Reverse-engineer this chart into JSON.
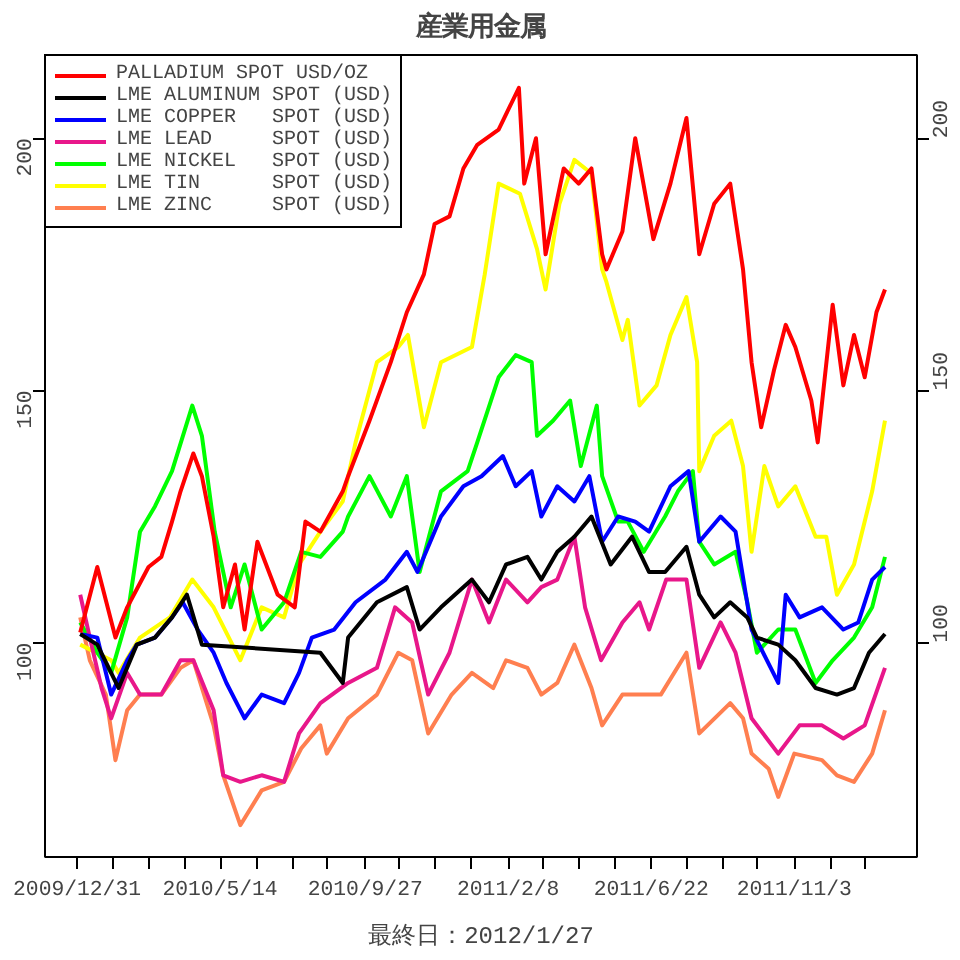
{
  "chart_data": {
    "type": "line",
    "title": "産業用金属",
    "annotations": [
      "最終日：2012/1/27"
    ],
    "xlim": [
      "2009-12-01",
      "2012-02-26"
    ],
    "xticks": [
      {
        "value": "2009-12-31",
        "label": "2009/12/31"
      },
      {
        "value": "2010-02-03",
        "label": null
      },
      {
        "value": "2010-03-08",
        "label": null
      },
      {
        "value": "2010-04-11",
        "label": null
      },
      {
        "value": "2010-05-14",
        "label": "2010/5/14"
      },
      {
        "value": "2010-06-17",
        "label": null
      },
      {
        "value": "2010-07-21",
        "label": null
      },
      {
        "value": "2010-08-23",
        "label": null
      },
      {
        "value": "2010-09-27",
        "label": "2010/9/27"
      },
      {
        "value": "2010-10-29",
        "label": null
      },
      {
        "value": "2010-12-02",
        "label": null
      },
      {
        "value": "2011-01-05",
        "label": null
      },
      {
        "value": "2011-02-08",
        "label": "2011/2/8"
      },
      {
        "value": "2011-03-13",
        "label": null
      },
      {
        "value": "2011-04-15",
        "label": null
      },
      {
        "value": "2011-05-19",
        "label": null
      },
      {
        "value": "2011-06-22",
        "label": "2011/6/22"
      },
      {
        "value": "2011-07-25",
        "label": null
      },
      {
        "value": "2011-08-28",
        "label": null
      },
      {
        "value": "2011-09-30",
        "label": null
      },
      {
        "value": "2011-11-03",
        "label": "2011/11/3"
      },
      {
        "value": "2011-12-07",
        "label": null
      },
      {
        "value": "2012-01-09",
        "label": null
      }
    ],
    "ylim": [
      57.5,
      216.5
    ],
    "yticks": [
      100,
      150,
      200
    ],
    "y2lim": [
      57.5,
      216.5
    ],
    "y2ticks": [
      100,
      150,
      200
    ],
    "legend": "top left",
    "series": [
      {
        "name": "PALLADIUM SPOT USD/OZ",
        "color": "#ff0000",
        "x": [
          "2010-01-03",
          "2010-01-19",
          "2010-02-05",
          "2010-02-16",
          "2010-02-21",
          "2010-03-08",
          "2010-03-20",
          "2010-03-30",
          "2010-04-07",
          "2010-04-19",
          "2010-04-27",
          "2010-05-08",
          "2010-05-17",
          "2010-05-28",
          "2010-06-06",
          "2010-06-18",
          "2010-07-07",
          "2010-07-23",
          "2010-08-02",
          "2010-08-16",
          "2010-09-06",
          "2010-09-11",
          "2010-10-01",
          "2010-10-21",
          "2010-11-05",
          "2010-11-21",
          "2010-12-01",
          "2010-12-15",
          "2010-12-28",
          "2011-01-10",
          "2011-01-30",
          "2011-02-18",
          "2011-02-23",
          "2011-03-06",
          "2011-03-15",
          "2011-04-01",
          "2011-04-15",
          "2011-04-27",
          "2011-05-07",
          "2011-05-11",
          "2011-05-26",
          "2011-06-07",
          "2011-06-24",
          "2011-07-10",
          "2011-07-25",
          "2011-08-06",
          "2011-08-20",
          "2011-09-04",
          "2011-09-16",
          "2011-09-24",
          "2011-10-03",
          "2011-10-15",
          "2011-10-26",
          "2011-11-04",
          "2011-11-19",
          "2011-11-25",
          "2011-12-09",
          "2011-12-19",
          "2011-12-29",
          "2012-01-08",
          "2012-01-19",
          "2012-01-27"
        ],
        "values": [
          102,
          115,
          101,
          107,
          109,
          115,
          117,
          124,
          130,
          137.5,
          133,
          121,
          107,
          115.5,
          102.6,
          120,
          109.5,
          107,
          124,
          122,
          130,
          133,
          144,
          155.6,
          165.5,
          173,
          183,
          184.5,
          194,
          198.7,
          201.7,
          210,
          191,
          200,
          177,
          194,
          191,
          194,
          177,
          174,
          181.5,
          200,
          180,
          191,
          204,
          177,
          187,
          191,
          174,
          155.6,
          142.7,
          154,
          163,
          158.6,
          148,
          139.7,
          167,
          151,
          161,
          152.6,
          165.5,
          170
        ]
      },
      {
        "name": "LME ALUMINUM SPOT (USD)",
        "color": "#000000",
        "x": [
          "2010-01-03",
          "2010-01-19",
          "2010-02-08",
          "2010-02-25",
          "2010-03-14",
          "2010-03-30",
          "2010-04-13",
          "2010-04-27",
          "2010-08-16",
          "2010-09-06",
          "2010-09-11",
          "2010-10-08",
          "2010-11-05",
          "2010-11-17",
          "2010-12-07",
          "2011-01-05",
          "2011-01-21",
          "2011-02-06",
          "2011-02-26",
          "2011-03-11",
          "2011-03-26",
          "2011-04-11",
          "2011-04-27",
          "2011-05-15",
          "2011-06-04",
          "2011-06-20",
          "2011-07-05",
          "2011-07-25",
          "2011-08-06",
          "2011-08-20",
          "2011-09-04",
          "2011-09-20",
          "2011-09-29",
          "2011-10-19",
          "2011-11-04",
          "2011-11-23",
          "2011-12-13",
          "2011-12-29",
          "2012-01-12",
          "2012-01-27"
        ],
        "values": [
          101.7,
          99.6,
          91,
          99.6,
          101,
          105,
          109.5,
          99.6,
          98,
          92,
          101,
          108,
          111,
          102.6,
          107,
          112.5,
          108,
          115.5,
          117,
          112.5,
          118,
          121,
          125,
          115.5,
          121,
          114,
          114,
          119,
          109.5,
          105,
          108,
          105,
          101,
          99.6,
          96.5,
          91,
          89.7,
          91,
          98,
          101.7
        ]
      },
      {
        "name": "LME COPPER   SPOT (USD)",
        "color": "#0000ff",
        "x": [
          "2010-01-03",
          "2010-01-19",
          "2010-02-01",
          "2010-02-16",
          "2010-02-25",
          "2010-03-14",
          "2010-03-30",
          "2010-04-09",
          "2010-04-23",
          "2010-05-08",
          "2010-05-20",
          "2010-06-06",
          "2010-06-22",
          "2010-07-13",
          "2010-07-27",
          "2010-08-08",
          "2010-08-29",
          "2010-09-18",
          "2010-10-16",
          "2010-11-05",
          "2010-11-15",
          "2010-12-07",
          "2010-12-28",
          "2011-01-14",
          "2011-02-03",
          "2011-02-15",
          "2011-03-02",
          "2011-03-11",
          "2011-03-26",
          "2011-04-11",
          "2011-04-25",
          "2011-05-07",
          "2011-05-22",
          "2011-06-07",
          "2011-06-20",
          "2011-07-10",
          "2011-07-27",
          "2011-08-06",
          "2011-08-26",
          "2011-09-09",
          "2011-09-24",
          "2011-10-19",
          "2011-10-26",
          "2011-11-08",
          "2011-11-29",
          "2011-12-19",
          "2012-01-02",
          "2012-01-15",
          "2012-01-27"
        ],
        "values": [
          101.7,
          101,
          89.7,
          96.5,
          99.6,
          101,
          105,
          108,
          102.6,
          98,
          92,
          85,
          89.7,
          88,
          94,
          101,
          102.6,
          108,
          112.5,
          118,
          114,
          125,
          131,
          133,
          137,
          131,
          134,
          125,
          131,
          128,
          133,
          120,
          125,
          124,
          122,
          131,
          134,
          120,
          125,
          122,
          102.6,
          92,
          109.5,
          105,
          107,
          102.6,
          104,
          112.5,
          115
        ]
      },
      {
        "name": "LME LEAD     SPOT (USD)",
        "color": "#e8178a",
        "x": [
          "2010-01-03",
          "2010-01-12",
          "2010-01-23",
          "2010-02-01",
          "2010-02-16",
          "2010-02-28",
          "2010-03-20",
          "2010-04-07",
          "2010-04-19",
          "2010-05-08",
          "2010-05-17",
          "2010-06-02",
          "2010-06-22",
          "2010-07-13",
          "2010-07-27",
          "2010-08-16",
          "2010-09-11",
          "2010-10-08",
          "2010-10-25",
          "2010-11-10",
          "2010-11-25",
          "2010-12-15",
          "2011-01-05",
          "2011-01-21",
          "2011-02-06",
          "2011-02-26",
          "2011-03-11",
          "2011-03-26",
          "2011-04-11",
          "2011-04-21",
          "2011-05-06",
          "2011-05-26",
          "2011-06-11",
          "2011-06-20",
          "2011-07-06",
          "2011-07-25",
          "2011-08-06",
          "2011-08-26",
          "2011-09-09",
          "2011-09-24",
          "2011-10-19",
          "2011-11-08",
          "2011-11-29",
          "2011-12-19",
          "2012-01-08",
          "2012-01-27"
        ],
        "values": [
          109.5,
          101,
          91,
          85,
          94,
          89.7,
          89.7,
          96.5,
          96.5,
          86.6,
          73.7,
          72.4,
          73.7,
          72.4,
          82,
          88,
          92,
          95,
          107,
          104,
          89.7,
          98,
          112.5,
          104,
          112.5,
          108,
          111,
          112.5,
          121,
          107,
          96.5,
          104,
          108,
          102.6,
          112.5,
          112.5,
          95,
          104,
          98,
          85,
          78,
          83.6,
          83.6,
          81,
          83.6,
          95
        ]
      },
      {
        "name": "LME NICKEL   SPOT (USD)",
        "color": "#00ff00",
        "x": [
          "2010-01-03",
          "2010-01-19",
          "2010-02-01",
          "2010-02-16",
          "2010-02-28",
          "2010-03-14",
          "2010-03-30",
          "2010-04-18",
          "2010-04-27",
          "2010-05-09",
          "2010-05-24",
          "2010-06-06",
          "2010-06-22",
          "2010-07-13",
          "2010-07-29",
          "2010-08-16",
          "2010-09-06",
          "2010-09-11",
          "2010-10-01",
          "2010-10-21",
          "2010-11-05",
          "2010-11-17",
          "2010-12-07",
          "2011-01-01",
          "2011-01-10",
          "2011-01-30",
          "2011-02-15",
          "2011-03-02",
          "2011-03-07",
          "2011-03-22",
          "2011-04-07",
          "2011-04-17",
          "2011-05-02",
          "2011-05-07",
          "2011-05-22",
          "2011-05-31",
          "2011-06-15",
          "2011-07-05",
          "2011-07-17",
          "2011-07-31",
          "2011-08-06",
          "2011-08-20",
          "2011-09-09",
          "2011-09-20",
          "2011-09-29",
          "2011-10-19",
          "2011-11-04",
          "2011-11-23",
          "2011-12-09",
          "2011-12-29",
          "2012-01-15",
          "2012-01-27"
        ],
        "values": [
          104,
          98,
          94,
          105,
          122,
          127,
          134,
          147,
          141,
          122,
          107,
          115.5,
          102.6,
          108,
          118,
          117,
          122,
          125,
          133,
          125,
          133,
          114,
          130,
          134,
          139.7,
          152.6,
          157,
          155.6,
          141,
          144,
          148,
          135,
          147,
          133,
          124,
          124,
          118,
          125,
          130,
          134,
          120,
          115.5,
          118,
          108,
          98,
          102.6,
          102.6,
          92,
          96.5,
          101,
          107,
          117
        ]
      },
      {
        "name": "LME TIN      SPOT (USD)",
        "color": "#ffff00",
        "x": [
          "2010-01-03",
          "2010-02-01",
          "2010-02-08",
          "2010-02-28",
          "2010-03-28",
          "2010-04-18",
          "2010-05-08",
          "2010-06-02",
          "2010-06-22",
          "2010-07-13",
          "2010-07-27",
          "2010-08-16",
          "2010-09-06",
          "2010-09-18",
          "2010-10-08",
          "2010-10-28",
          "2010-11-06",
          "2010-11-21",
          "2010-12-07",
          "2011-01-05",
          "2011-01-17",
          "2011-01-30",
          "2011-02-19",
          "2011-03-07",
          "2011-03-15",
          "2011-03-28",
          "2011-04-11",
          "2011-04-27",
          "2011-05-07",
          "2011-05-11",
          "2011-05-26",
          "2011-05-31",
          "2011-06-11",
          "2011-06-27",
          "2011-07-10",
          "2011-07-25",
          "2011-08-04",
          "2011-08-06",
          "2011-08-20",
          "2011-09-05",
          "2011-09-16",
          "2011-09-24",
          "2011-10-06",
          "2011-10-19",
          "2011-11-04",
          "2011-11-23",
          "2011-12-03",
          "2011-12-13",
          "2011-12-29",
          "2012-01-15",
          "2012-01-27"
        ],
        "values": [
          99.6,
          96.5,
          94,
          101,
          105,
          112.5,
          107,
          96.5,
          107,
          105,
          115.5,
          122,
          128,
          139.7,
          155.6,
          158.6,
          161,
          142.7,
          155.6,
          158.6,
          173,
          191,
          189,
          178,
          170,
          187,
          195.7,
          193,
          174,
          171.5,
          160,
          164,
          147,
          151,
          161,
          168.5,
          155.6,
          134,
          141,
          144,
          135,
          118,
          135,
          127,
          131,
          121,
          121,
          109.5,
          115.5,
          130,
          144
        ]
      },
      {
        "name": "LME ZINC     SPOT (USD)",
        "color": "#ff7f50",
        "x": [
          "2010-01-03",
          "2010-01-12",
          "2010-01-27",
          "2010-02-05",
          "2010-02-16",
          "2010-02-28",
          "2010-03-20",
          "2010-04-07",
          "2010-04-19",
          "2010-05-08",
          "2010-05-17",
          "2010-06-02",
          "2010-06-22",
          "2010-07-13",
          "2010-07-29",
          "2010-08-16",
          "2010-08-22",
          "2010-09-11",
          "2010-10-08",
          "2010-10-28",
          "2010-11-10",
          "2010-11-25",
          "2010-12-17",
          "2011-01-05",
          "2011-01-25",
          "2011-02-06",
          "2011-02-26",
          "2011-03-11",
          "2011-03-26",
          "2011-04-11",
          "2011-04-27",
          "2011-05-07",
          "2011-05-26",
          "2011-06-15",
          "2011-07-01",
          "2011-07-25",
          "2011-08-06",
          "2011-09-04",
          "2011-09-16",
          "2011-09-24",
          "2011-10-10",
          "2011-10-19",
          "2011-11-03",
          "2011-11-29",
          "2011-12-13",
          "2011-12-29",
          "2012-01-15",
          "2012-01-27"
        ],
        "values": [
          105,
          96.5,
          89.7,
          76.7,
          86.6,
          89.7,
          89.7,
          95,
          96.5,
          83.6,
          73.7,
          63.8,
          70.7,
          72.4,
          79,
          83.6,
          78,
          85,
          89.7,
          98,
          96.5,
          82,
          89.7,
          94,
          91,
          96.5,
          95,
          89.7,
          92,
          99.6,
          91,
          83.6,
          89.7,
          89.7,
          89.7,
          98,
          82,
          88,
          85,
          78,
          75,
          69.4,
          78,
          76.7,
          73.7,
          72.4,
          78,
          86.6
        ]
      }
    ]
  }
}
